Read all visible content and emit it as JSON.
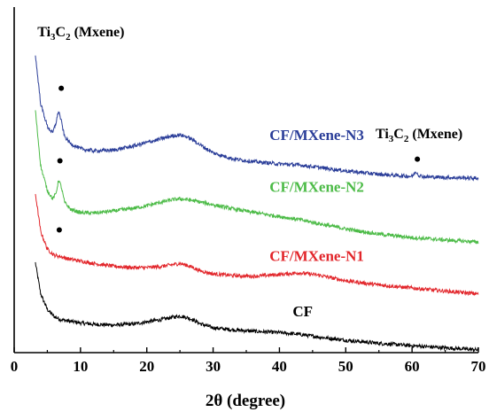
{
  "chart_data": {
    "type": "line",
    "title": "",
    "xlabel": "2θ (degree)",
    "ylabel": "",
    "xlim": [
      0,
      70
    ],
    "ylim": [
      0,
      100
    ],
    "xticks": [
      0,
      10,
      20,
      30,
      40,
      50,
      60,
      70
    ],
    "grid": false,
    "colors": {
      "CF": "#000000",
      "CF/MXene-N1": "#e2262b",
      "CF/MXene-N2": "#4cbb47",
      "CF/MXene-N3": "#2b3e99"
    },
    "series": [
      {
        "name": "CF",
        "color": "#000000",
        "x": [
          3.2,
          4,
          5,
          6,
          7,
          8,
          10,
          12,
          15,
          18,
          20,
          22,
          24,
          25,
          26,
          27,
          28,
          30,
          33,
          36,
          40,
          43,
          46,
          50,
          55,
          60,
          65,
          70
        ],
        "y": [
          26,
          17,
          12.5,
          10.5,
          9.6,
          9.2,
          8.6,
          8.2,
          8.0,
          8.3,
          8.9,
          9.5,
          10.3,
          10.6,
          10.2,
          9.5,
          8.4,
          7.2,
          6.6,
          6.2,
          5.8,
          5.3,
          4.5,
          3.6,
          2.7,
          2.0,
          1.4,
          0.8
        ]
      },
      {
        "name": "CF/MXene-N1",
        "color": "#e2262b",
        "x": [
          3.2,
          4,
          5,
          6,
          7,
          8,
          10,
          12,
          15,
          18,
          20,
          22,
          24,
          25,
          26,
          27,
          28,
          30,
          33,
          36,
          40,
          43,
          46,
          50,
          55,
          60,
          65,
          70
        ],
        "y": [
          46,
          35,
          30,
          28.2,
          27.8,
          27.2,
          26.5,
          25.8,
          25.0,
          24.6,
          24.6,
          24.9,
          25.5,
          25.8,
          25.3,
          24.6,
          23.7,
          22.8,
          22.3,
          22.1,
          22.6,
          23.1,
          22.4,
          20.8,
          19.6,
          18.7,
          17.8,
          17.0
        ]
      },
      {
        "name": "CF/MXene-N2",
        "color": "#4cbb47",
        "x": [
          3.2,
          4,
          5,
          5.8,
          6.3,
          6.7,
          7.1,
          7.6,
          8.5,
          10,
          12,
          15,
          18,
          20,
          22,
          24,
          25,
          26,
          27,
          28,
          30,
          33,
          36,
          40,
          43,
          46,
          50,
          55,
          60,
          65,
          70
        ],
        "y": [
          70,
          54,
          47,
          44.5,
          46,
          50,
          48,
          43.5,
          41.5,
          40.5,
          40.4,
          41.0,
          41.8,
          42.5,
          43.5,
          44.3,
          44.5,
          44.3,
          44.0,
          43.6,
          42.8,
          41.6,
          40.6,
          39.4,
          38.5,
          37.3,
          35.8,
          34.3,
          33.3,
          32.6,
          32.0
        ]
      },
      {
        "name": "CF/MXene-N3",
        "color": "#2b3e99",
        "x": [
          3.2,
          4,
          5,
          5.8,
          6.3,
          6.7,
          7.1,
          7.6,
          8.5,
          10,
          12,
          15,
          18,
          20,
          22,
          24,
          25,
          26,
          27,
          28,
          30,
          33,
          36,
          40,
          43,
          46,
          50,
          55,
          60,
          60.6,
          61.1,
          62,
          65,
          70
        ],
        "y": [
          86,
          72,
          65.5,
          63.5,
          66.5,
          70,
          67,
          62.5,
          60.5,
          59.0,
          58.4,
          58.6,
          59.8,
          60.8,
          61.8,
          62.8,
          63.0,
          62.5,
          61.5,
          60.2,
          57.8,
          56.1,
          55.3,
          54.6,
          54.3,
          53.6,
          52.6,
          51.6,
          51.0,
          52.4,
          51.2,
          50.9,
          50.7,
          50.5
        ]
      }
    ],
    "series_labels": [
      {
        "text": "CF/MXene-N3",
        "color": "#2b3e99",
        "x": 38.5,
        "y": 61.5
      },
      {
        "text": "CF/MXene-N2",
        "color": "#4cbb47",
        "x": 38.5,
        "y": 46.5
      },
      {
        "text": "CF/MXene-N1",
        "color": "#e2262b",
        "x": 38.5,
        "y": 26.5
      },
      {
        "text": "CF",
        "color": "#000000",
        "x": 42,
        "y": 10.5
      }
    ],
    "annotations": [
      {
        "text": "Ti",
        "sub1": "3",
        "mid": "C",
        "sub2": "2",
        "rest": " (Mxene)",
        "x": 3.5,
        "y": 91.5
      },
      {
        "text": "Ti",
        "sub1": "3",
        "mid": "C",
        "sub2": "2",
        "rest": " (Mxene)",
        "x": 54.5,
        "y": 62
      }
    ],
    "markers": [
      {
        "x": 7.1,
        "y": 76.5
      },
      {
        "x": 6.9,
        "y": 55.5
      },
      {
        "x": 6.8,
        "y": 35.5
      },
      {
        "x": 60.8,
        "y": 56
      }
    ]
  }
}
